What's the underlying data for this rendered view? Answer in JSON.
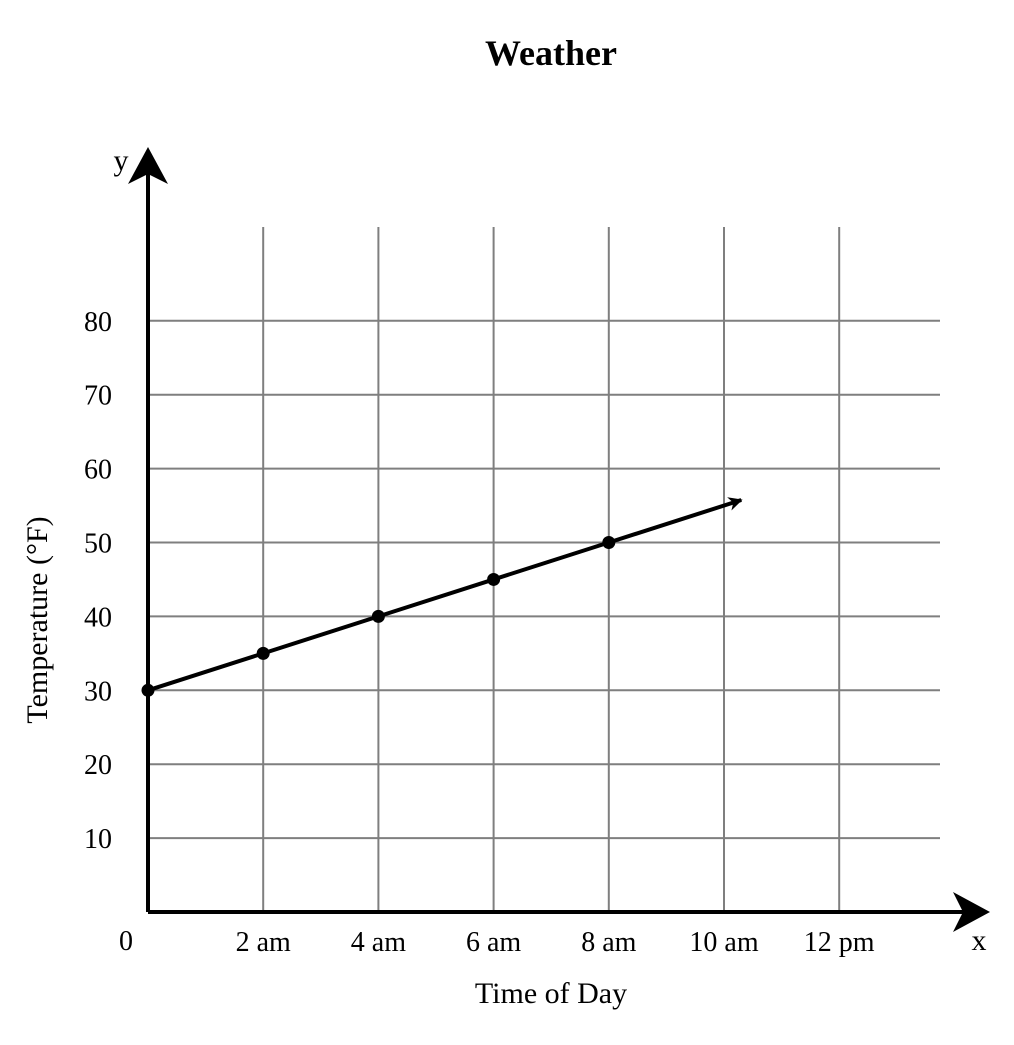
{
  "chart_data": {
    "type": "line",
    "title": "Weather",
    "xlabel": "Time of Day",
    "ylabel": "Temperature (°F)",
    "x_axis_letter": "x",
    "y_axis_letter": "y",
    "origin_label": "0",
    "x_tick_labels": [
      "2 am",
      "4 am",
      "6 am",
      "8 am",
      "10 am",
      "12 pm"
    ],
    "y_ticks": [
      10,
      20,
      30,
      40,
      50,
      60,
      70,
      80
    ],
    "xlim": [
      0,
      12
    ],
    "ylim": [
      0,
      80
    ],
    "grid": true,
    "series": [
      {
        "x": [
          0,
          2,
          4,
          6,
          8
        ],
        "y": [
          30,
          35,
          40,
          45,
          50
        ],
        "arrow_end": {
          "x": 10.3,
          "y": 55.75
        }
      }
    ]
  }
}
